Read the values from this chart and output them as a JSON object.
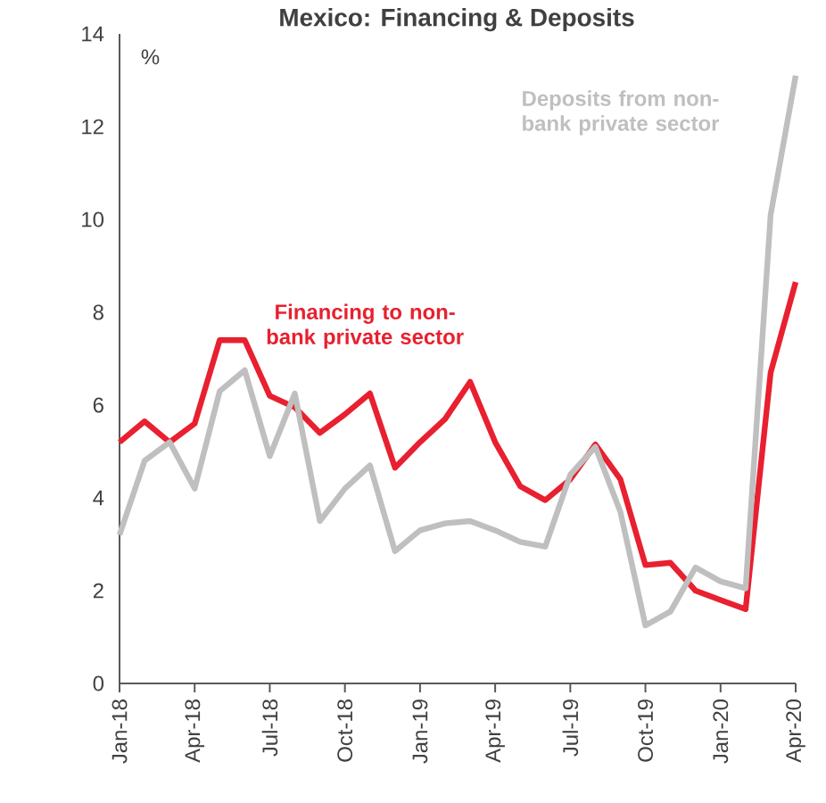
{
  "chart_data": {
    "type": "line",
    "title": "Mexico: Financing & Deposits",
    "ylabel": "%",
    "categories": [
      "Jan-18",
      null,
      null,
      "Apr-18",
      null,
      null,
      "Jul-18",
      null,
      null,
      "Oct-18",
      null,
      null,
      "Jan-19",
      null,
      null,
      "Apr-19",
      null,
      null,
      "Jul-19",
      null,
      null,
      "Oct-19",
      null,
      null,
      "Jan-20",
      null,
      null,
      "Apr-20"
    ],
    "series": [
      {
        "name": "Financing to non-bank private sector",
        "color": "#e8202f",
        "values": [
          5.2,
          5.65,
          5.2,
          5.6,
          7.4,
          7.4,
          6.2,
          5.95,
          5.4,
          5.8,
          6.25,
          4.65,
          5.2,
          5.7,
          6.5,
          5.2,
          4.25,
          3.95,
          4.4,
          5.15,
          4.4,
          2.55,
          2.6,
          2.0,
          1.8,
          1.6,
          6.7,
          8.65
        ]
      },
      {
        "name": "Deposits from non-bank private sector",
        "color": "#bfbfbf",
        "values": [
          3.2,
          4.8,
          5.2,
          4.2,
          6.3,
          6.75,
          4.9,
          6.25,
          3.5,
          4.2,
          4.7,
          2.85,
          3.3,
          3.45,
          3.5,
          3.3,
          3.05,
          2.95,
          4.5,
          5.1,
          3.7,
          1.25,
          1.55,
          2.5,
          2.2,
          2.05,
          10.1,
          13.1
        ]
      }
    ],
    "ylim": [
      0,
      14
    ],
    "yticks": [
      0,
      2,
      4,
      6,
      8,
      10,
      12,
      14
    ],
    "grid": false,
    "legend": false,
    "marker": "none",
    "line_style": "solid"
  }
}
